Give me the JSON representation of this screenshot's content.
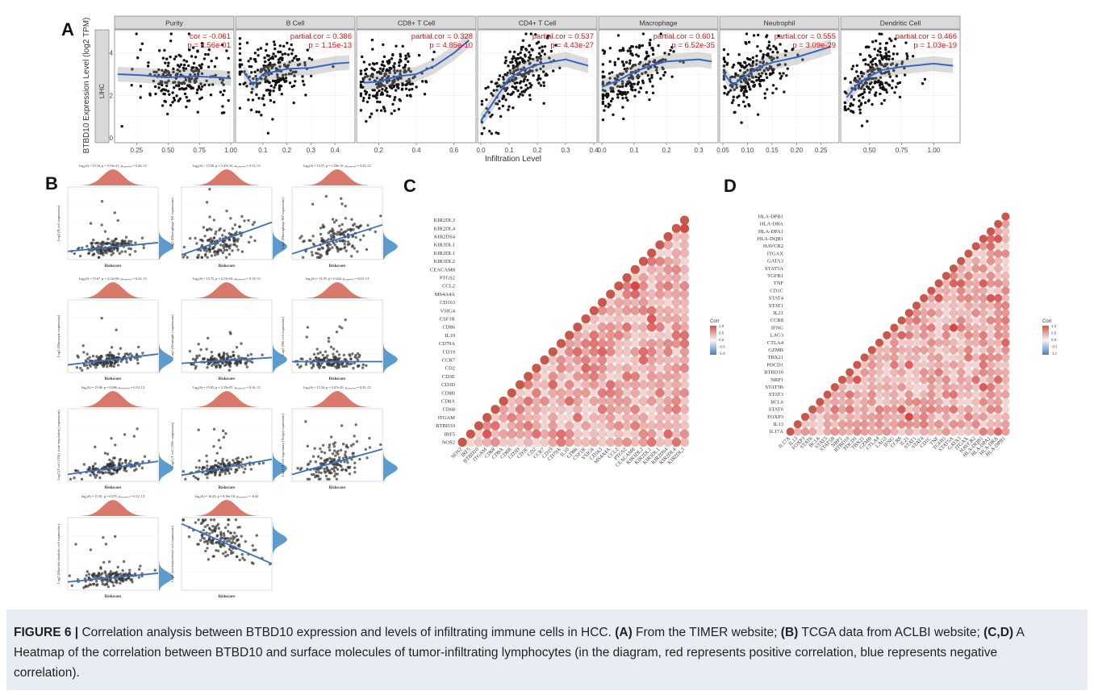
{
  "panels": {
    "a": "A",
    "b": "B",
    "c": "C",
    "d": "D"
  },
  "panel_a": {
    "y_axis_label": "BTBD10 Expression Level (log2 TPM)",
    "x_axis_label": "Infiltration Level",
    "row_strip": "LIHC",
    "y_ticks": [
      "0",
      "2",
      "4"
    ]
  },
  "panel_b": {
    "x_label": "Riskscore"
  },
  "heatmap_legend": {
    "title": "Corr",
    "ticks": [
      "1.0",
      "0.5",
      "0.0",
      "-0.5",
      "-1.0"
    ]
  },
  "caption": {
    "figure_label": "FIGURE 6 |",
    "text_1": " Correlation analysis between BTBD10 expression and levels of infiltrating immune cells in HCC. ",
    "label_a": "(A)",
    "text_2": " From the TIMER website; ",
    "label_b": "(B)",
    "text_3": " TCGA data from ACLBI website; ",
    "label_cd": "(C,D)",
    "text_4": " A Heatmap of the correlation between BTBD10 and surface molecules of tumor-infiltrating lymphocytes (in the diagram, red represents positive correlation, blue represents negative correlation)."
  },
  "chart_data": [
    {
      "type": "scatter",
      "panel": "A",
      "xlabel": "Infiltration Level",
      "ylabel": "BTBD10 Expression Level (log2 TPM)",
      "ylim": [
        0,
        5
      ],
      "facets": [
        {
          "name": "Purity",
          "stat_label": "cor = -0.061",
          "p_label": "p = 2.56e-01",
          "xlim": [
            0.1,
            1.0
          ],
          "xticks": [
            "0.25",
            "0.50",
            "0.75",
            "1.00"
          ],
          "xtick_values": [
            0.25,
            0.5,
            0.75,
            1.0
          ],
          "trend": [
            [
              0.1,
              3.0
            ],
            [
              0.3,
              2.95
            ],
            [
              0.5,
              2.85
            ],
            [
              0.7,
              2.9
            ],
            [
              0.9,
              2.85
            ],
            [
              1.0,
              2.8
            ]
          ],
          "cx": 0.62,
          "sx": 0.18
        },
        {
          "name": "B Cell",
          "stat_label": "partial.cor = 0.386",
          "p_label": "p = 1.15e-13",
          "xlim": [
            0.0,
            0.47
          ],
          "xticks": [
            "0.1",
            "0.2",
            "0.3",
            "0.4"
          ],
          "xtick_values": [
            0.1,
            0.2,
            0.3,
            0.4
          ],
          "trend": [
            [
              0.02,
              3.1
            ],
            [
              0.06,
              2.5
            ],
            [
              0.1,
              3.0
            ],
            [
              0.2,
              3.25
            ],
            [
              0.3,
              3.3
            ],
            [
              0.4,
              3.5
            ],
            [
              0.46,
              3.55
            ]
          ],
          "cx": 0.14,
          "sx": 0.08
        },
        {
          "name": "CD8+ T Cell",
          "stat_label": "partial.cor = 0.328",
          "p_label": "p = 4.85e-10",
          "xlim": [
            0.1,
            0.7
          ],
          "xticks": [
            "0.2",
            "0.4",
            "0.6"
          ],
          "xtick_values": [
            0.2,
            0.4,
            0.6
          ],
          "trend": [
            [
              0.12,
              2.6
            ],
            [
              0.2,
              2.65
            ],
            [
              0.3,
              2.9
            ],
            [
              0.4,
              3.0
            ],
            [
              0.5,
              3.4
            ],
            [
              0.6,
              4.0
            ],
            [
              0.68,
              4.6
            ]
          ],
          "cx": 0.25,
          "sx": 0.09
        },
        {
          "name": "CD4+ T Cell",
          "stat_label": "partial.cor = 0.537",
          "p_label": "p = 4.43e-27",
          "xlim": [
            0.0,
            0.4
          ],
          "xticks": [
            "0.0",
            "0.1",
            "0.2",
            "0.3",
            "0.4"
          ],
          "xtick_values": [
            0.0,
            0.1,
            0.2,
            0.3,
            0.4
          ],
          "trend": [
            [
              0.0,
              0.8
            ],
            [
              0.05,
              1.8
            ],
            [
              0.1,
              2.8
            ],
            [
              0.15,
              3.2
            ],
            [
              0.2,
              3.45
            ],
            [
              0.3,
              3.7
            ],
            [
              0.38,
              3.4
            ]
          ],
          "cx": 0.13,
          "sx": 0.06
        },
        {
          "name": "Macrophage",
          "stat_label": "partial.cor = 0.601",
          "p_label": "p = 6.52e-35",
          "xlim": [
            0.0,
            0.35
          ],
          "xticks": [
            "0.0",
            "0.1",
            "0.2",
            "0.3"
          ],
          "xtick_values": [
            0.0,
            0.1,
            0.2,
            0.3
          ],
          "trend": [
            [
              0.0,
              2.4
            ],
            [
              0.05,
              2.7
            ],
            [
              0.1,
              3.1
            ],
            [
              0.15,
              3.4
            ],
            [
              0.2,
              3.6
            ],
            [
              0.3,
              3.7
            ],
            [
              0.34,
              3.6
            ]
          ],
          "cx": 0.09,
          "sx": 0.06
        },
        {
          "name": "Neutrophil",
          "stat_label": "partial.cor = 0.555",
          "p_label": "p = 3.09e-29",
          "xlim": [
            0.05,
            0.28
          ],
          "xticks": [
            "0.05",
            "0.10",
            "0.15",
            "0.20",
            "0.25"
          ],
          "xtick_values": [
            0.05,
            0.1,
            0.15,
            0.2,
            0.25
          ],
          "trend": [
            [
              0.05,
              3.1
            ],
            [
              0.07,
              2.5
            ],
            [
              0.09,
              2.8
            ],
            [
              0.12,
              3.3
            ],
            [
              0.15,
              3.55
            ],
            [
              0.2,
              3.8
            ],
            [
              0.27,
              4.3
            ]
          ],
          "cx": 0.11,
          "sx": 0.035
        },
        {
          "name": "Dendritic Cell",
          "stat_label": "partial.cor = 0.466",
          "p_label": "p = 1.03e-19",
          "xlim": [
            0.3,
            1.18
          ],
          "xticks": [
            "0.50",
            "0.75",
            "1.00"
          ],
          "xtick_values": [
            0.5,
            0.75,
            1.0
          ],
          "trend": [
            [
              0.32,
              1.9
            ],
            [
              0.4,
              2.5
            ],
            [
              0.5,
              2.9
            ],
            [
              0.6,
              3.2
            ],
            [
              0.75,
              3.35
            ],
            [
              1.0,
              3.5
            ],
            [
              1.15,
              3.4
            ]
          ],
          "cx": 0.55,
          "sx": 0.13
        }
      ]
    },
    {
      "type": "scatter",
      "panel": "B",
      "xlabel": "Riskscore",
      "facets": [
        {
          "ylabel": "Log2 (B cell expression)",
          "stats": "log₂(S) = 15.34, p = 9.15e-21, ρₛₚₑₐᵣₘₐₙ = 0.46, CI",
          "slope": 0.12
        },
        {
          "ylabel": "Log2 (Macrophage M1 expression)",
          "stats": "log₂(S) = 15.58, p = 5.47e-16, ρₛₚₑₐᵣₘₐₙ = 0.51, CI",
          "slope": 0.45
        },
        {
          "ylabel": "Log2 (Macrophage M2 expression)",
          "stats": "log₂(S) = 15.37, p = 1.59e-19, ρₛₚₑₐᵣₘₐₙ = 0.45, CI",
          "slope": 0.4
        },
        {
          "ylabel": "Log2 (Monocyte expression)",
          "stats": "log₂(S) = 15.67, p = 4.12e-06, ρₛₚₑₐᵣₘₐₙ = 0.23, CI",
          "slope": 0.15
        },
        {
          "ylabel": "Log2 (Neutrophil expression)",
          "stats": "log₂(S) = 15.75, p = 2.15e-04, ρₛₚₑₐᵣₘₐₙ = 0.19, CI",
          "slope": 0.08
        },
        {
          "ylabel": "Log2 (NK cell expression)",
          "stats": "log₂(S) = 15.95, p = 0.444, ρₛₚₑₐᵣₘₐₙ = 0.03, CI",
          "slope": 0.0
        },
        {
          "ylabel": "Log2 (T cell CD4+ (non-regulatory) expression)",
          "stats": "log₂(S) = 15.86, p = 0.006, ρₛₚₑₐᵣₘₐₙ = 0.14, CI",
          "slope": 0.18
        },
        {
          "ylabel": "Log2 (T cell CD8+ expression)",
          "stats": "log₂(S) = 15.65, p = 2.35e-07, ρₛₚₑₐᵣₘₐₙ = 0.26, CI",
          "slope": 0.22
        },
        {
          "ylabel": "Log2 (T cell regulatory (Tregs) expression)",
          "stats": "log₂(S) = 15.34, p = 5.67e-20, ρₛₚₑₐᵣₘₐₙ = 0.45, CI",
          "slope": 0.35
        },
        {
          "ylabel": "Log2 (Myeloid dendritic cell expression)",
          "stats": "log₂(S) = 15.81, p = 0.075, ρₛₚₑₐᵣₘₐₙ = 0.12, CI",
          "slope": 0.12
        },
        {
          "ylabel": "Log2 (uncharacterized cell expression)",
          "stats": "log₂(S) = 16.43, p = 8.38e-18, ρₛₚₑₐᵣₘₐₙ = -0.44",
          "slope": -0.55
        }
      ]
    },
    {
      "type": "heatmap",
      "panel": "C",
      "legend_title": "Corr",
      "rows": [
        "KIR2DL3",
        "KIR2DL4",
        "KIR2DS4",
        "KIR3DL1",
        "KIR2DL1",
        "KIR3DL2",
        "CEACAM8",
        "PTGS2",
        "CCL2",
        "MS4A4A",
        "CD163",
        "VSIG4",
        "CSF1R",
        "CD86",
        "IL10",
        "CD79A",
        "CD19",
        "CCR7",
        "CD2",
        "CD3E",
        "CD3D",
        "CD8B",
        "CD8A",
        "CD68",
        "ITGAM",
        "BTBD10",
        "IRF5",
        "NOS2"
      ]
    },
    {
      "type": "heatmap",
      "panel": "D",
      "legend_title": "Corr",
      "rows": [
        "HLA-DPB1",
        "HLA-DRA",
        "HLA-DPA1",
        "HLA-DQB1",
        "HAVCR2",
        "ITGAX",
        "GATA3",
        "STAT5A",
        "TGFB1",
        "TNF",
        "CD1C",
        "STAT4",
        "STAT1",
        "IL21",
        "CCR8",
        "IFNG",
        "LAG3",
        "CTLA4",
        "GZMB",
        "TBX21",
        "PDCD1",
        "BTBD10",
        "NRP1",
        "STAT5B",
        "STAT3",
        "BCL6",
        "STAT6",
        "FOXP3",
        "IL13",
        "IL17A"
      ]
    }
  ]
}
